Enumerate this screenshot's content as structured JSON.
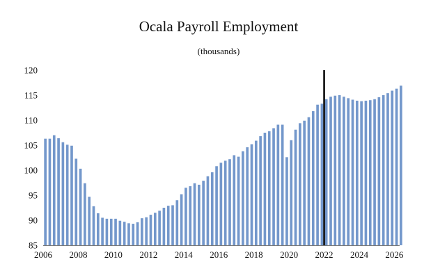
{
  "chart_data": {
    "type": "bar",
    "title": "Ocala Payroll Employment",
    "subtitle": "(thousands)",
    "xlabel": "",
    "ylabel": "",
    "ylim": [
      85,
      120
    ],
    "xlim": [
      2006,
      2026.3
    ],
    "y_ticks": [
      85,
      90,
      95,
      100,
      105,
      110,
      115,
      120
    ],
    "x_ticks": [
      2006,
      2008,
      2010,
      2012,
      2014,
      2016,
      2018,
      2020,
      2022,
      2024,
      2026
    ],
    "x_tick_labels": [
      "2006",
      "2008",
      "2010",
      "2012",
      "2014",
      "2016",
      "2018",
      "2020",
      "2022",
      "2024",
      "2026"
    ],
    "frequency": "quarterly",
    "start": "2006 Q1",
    "values": [
      106.3,
      106.3,
      107.0,
      106.4,
      105.6,
      105.1,
      104.9,
      102.3,
      100.3,
      97.4,
      94.7,
      92.8,
      91.4,
      90.5,
      90.3,
      90.3,
      90.3,
      89.9,
      89.7,
      89.4,
      89.3,
      89.6,
      90.4,
      90.6,
      91.1,
      91.5,
      91.9,
      92.5,
      92.9,
      93.0,
      94.0,
      95.2,
      96.5,
      96.8,
      97.4,
      97.1,
      97.9,
      98.8,
      99.6,
      100.8,
      101.5,
      101.9,
      102.2,
      103.0,
      102.7,
      103.8,
      104.6,
      105.2,
      105.9,
      106.8,
      107.5,
      107.8,
      108.4,
      109.1,
      109.1,
      102.6,
      106.0,
      108.1,
      109.4,
      109.9,
      110.6,
      111.8,
      113.1,
      113.3,
      114.2,
      114.7,
      114.9,
      115.0,
      114.7,
      114.4,
      114.1,
      113.9,
      113.8,
      113.9,
      114.0,
      114.2,
      114.6,
      115.0,
      115.4,
      115.9,
      116.3,
      116.9
    ],
    "bar_color": "#7397cb",
    "marker_line": {
      "x": 2022.0,
      "color": "#000000"
    },
    "grid": false,
    "legend": "none"
  }
}
